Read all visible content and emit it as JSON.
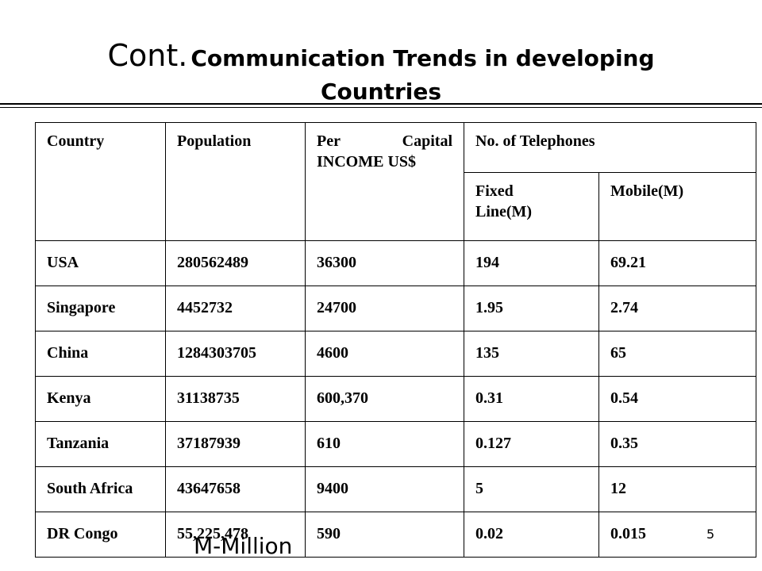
{
  "title": {
    "prefix": "Cont.",
    "main": "Communication Trends in developing",
    "line2": "Countries"
  },
  "table": {
    "headers": {
      "country": "Country",
      "population": "Population",
      "income_word1": "Per",
      "income_word2": "Capital",
      "income_line2": "INCOME US$",
      "telephones": "No. of Telephones",
      "fixed_line1": "Fixed",
      "fixed_line2": "Line(M)",
      "mobile": "Mobile(M)"
    },
    "rows": [
      {
        "country": "USA",
        "population": "280562489",
        "income": "36300",
        "fixed": "194",
        "mobile": "69.21"
      },
      {
        "country": "Singapore",
        "population": "4452732",
        "income": "24700",
        "fixed": "1.95",
        "mobile": "2.74"
      },
      {
        "country": "China",
        "population": "1284303705",
        "income": "4600",
        "fixed": "135",
        "mobile": "65"
      },
      {
        "country": "Kenya",
        "population": "31138735",
        "income": "600,370",
        "fixed": "0.31",
        "mobile": "0.54"
      },
      {
        "country": "Tanzania",
        "population": "37187939",
        "income": "610",
        "fixed": "0.127",
        "mobile": "0.35"
      },
      {
        "country": "South Africa",
        "population": "43647658",
        "income": "9400",
        "fixed": "5",
        "mobile": "12"
      },
      {
        "country": "DR Congo",
        "population": "55,225,478",
        "income": "590",
        "fixed": "0.02",
        "mobile": "0.015"
      }
    ]
  },
  "footnote": "M-Million",
  "page_number": "5"
}
